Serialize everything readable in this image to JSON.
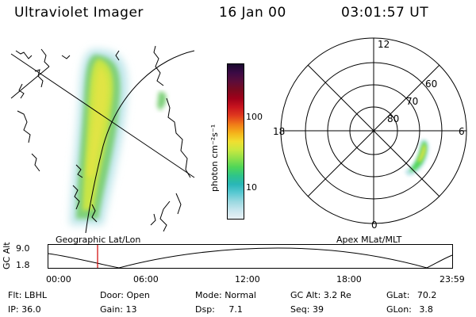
{
  "header": {
    "instrument": "Ultraviolet Imager",
    "date": "16 Jan 00",
    "time": "03:01:57 UT"
  },
  "colorbar": {
    "unit_label": "photon cm⁻²s⁻¹",
    "tick_labels": [
      "100",
      "10"
    ],
    "colors": [
      "#1a0a2e",
      "#3b0a45",
      "#5c0d3a",
      "#7a0a1f",
      "#a0001a",
      "#c8141e",
      "#e03a1e",
      "#f07a18",
      "#f5b21a",
      "#f0df30",
      "#c8e840",
      "#8ee04a",
      "#4fd658",
      "#2ec48a",
      "#2ab6b8",
      "#5ac9d2",
      "#9ad8e0",
      "#c8e6ee",
      "#e8f0f4"
    ]
  },
  "polar_plot": {
    "mlt_labels": [
      "12",
      "18",
      "6",
      "0"
    ],
    "lat_labels": [
      "60",
      "70",
      "80"
    ]
  },
  "panel_labels": {
    "left": "Geographic Lat/Lon",
    "right": "Apex MLat/MLT"
  },
  "altitude_plot": {
    "ylabel": "GC Alt",
    "y_ticks": [
      "9.0",
      "1.8"
    ],
    "time_ticks": [
      "00:00",
      "06:00",
      "12:00",
      "18:00",
      "23:59"
    ]
  },
  "info_lines": {
    "row1": [
      {
        "label": "Flt:",
        "value": "LBHL"
      },
      {
        "label": "Door:",
        "value": "Open"
      },
      {
        "label": "Mode:",
        "value": "Normal"
      },
      {
        "label": "GC Alt:",
        "value": "3.2 Re"
      },
      {
        "label": "GLat:",
        "value": "70.2"
      }
    ],
    "row2": [
      {
        "label": "IP:",
        "value": "36.0"
      },
      {
        "label": "Gain:",
        "value": "13"
      },
      {
        "label": "Dsp:",
        "value": "7.1"
      },
      {
        "label": "Seq:",
        "value": "39"
      },
      {
        "label": "GLon:",
        "value": "3.8"
      }
    ]
  },
  "colors": {
    "marker_line": "#d00000"
  }
}
